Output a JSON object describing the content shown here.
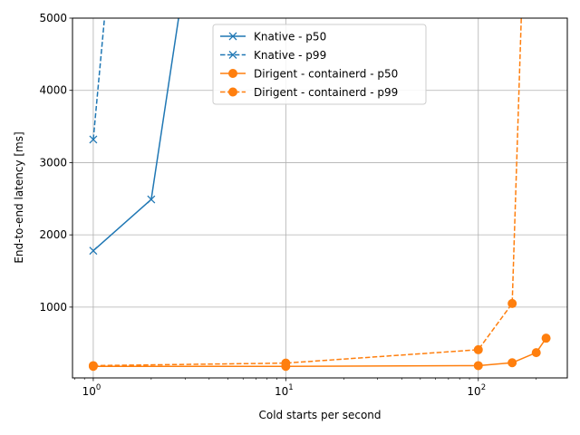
{
  "chart_data": {
    "type": "line",
    "xlabel": "Cold starts per second",
    "ylabel": "End-to-end latency [ms]",
    "x_scale": "log",
    "xlim": [
      0.78,
      290
    ],
    "ylim": [
      20,
      5000
    ],
    "x_ticks": [
      {
        "value": 1,
        "base": "10",
        "exp": "0"
      },
      {
        "value": 10,
        "base": "10",
        "exp": "1"
      },
      {
        "value": 100,
        "base": "10",
        "exp": "2"
      }
    ],
    "y_ticks": [
      1000,
      2000,
      3000,
      4000,
      5000
    ],
    "y_tick_labels": [
      "1000",
      "2000",
      "3000",
      "4000",
      "5000"
    ],
    "grid": true,
    "legend_position": "top-center",
    "series": [
      {
        "name": "Knative - p50",
        "color": "#1f77b4",
        "marker": "x",
        "dashed": false,
        "x": [
          1,
          2,
          3
        ],
        "y": [
          1780,
          2490,
          5600
        ]
      },
      {
        "name": "Knative - p99",
        "color": "#1f77b4",
        "marker": "x",
        "dashed": true,
        "x": [
          1,
          1.2
        ],
        "y": [
          3320,
          5600
        ]
      },
      {
        "name": "Dirigent - containerd - p50",
        "color": "#ff7f0e",
        "marker": "o",
        "dashed": false,
        "x": [
          1,
          10,
          100,
          150,
          200,
          225
        ],
        "y": [
          180,
          180,
          190,
          230,
          370,
          570
        ]
      },
      {
        "name": "Dirigent - containerd - p99",
        "color": "#ff7f0e",
        "marker": "o",
        "dashed": true,
        "x": [
          1,
          10,
          100,
          150,
          170
        ],
        "y": [
          190,
          225,
          410,
          1050,
          5600
        ]
      }
    ]
  }
}
